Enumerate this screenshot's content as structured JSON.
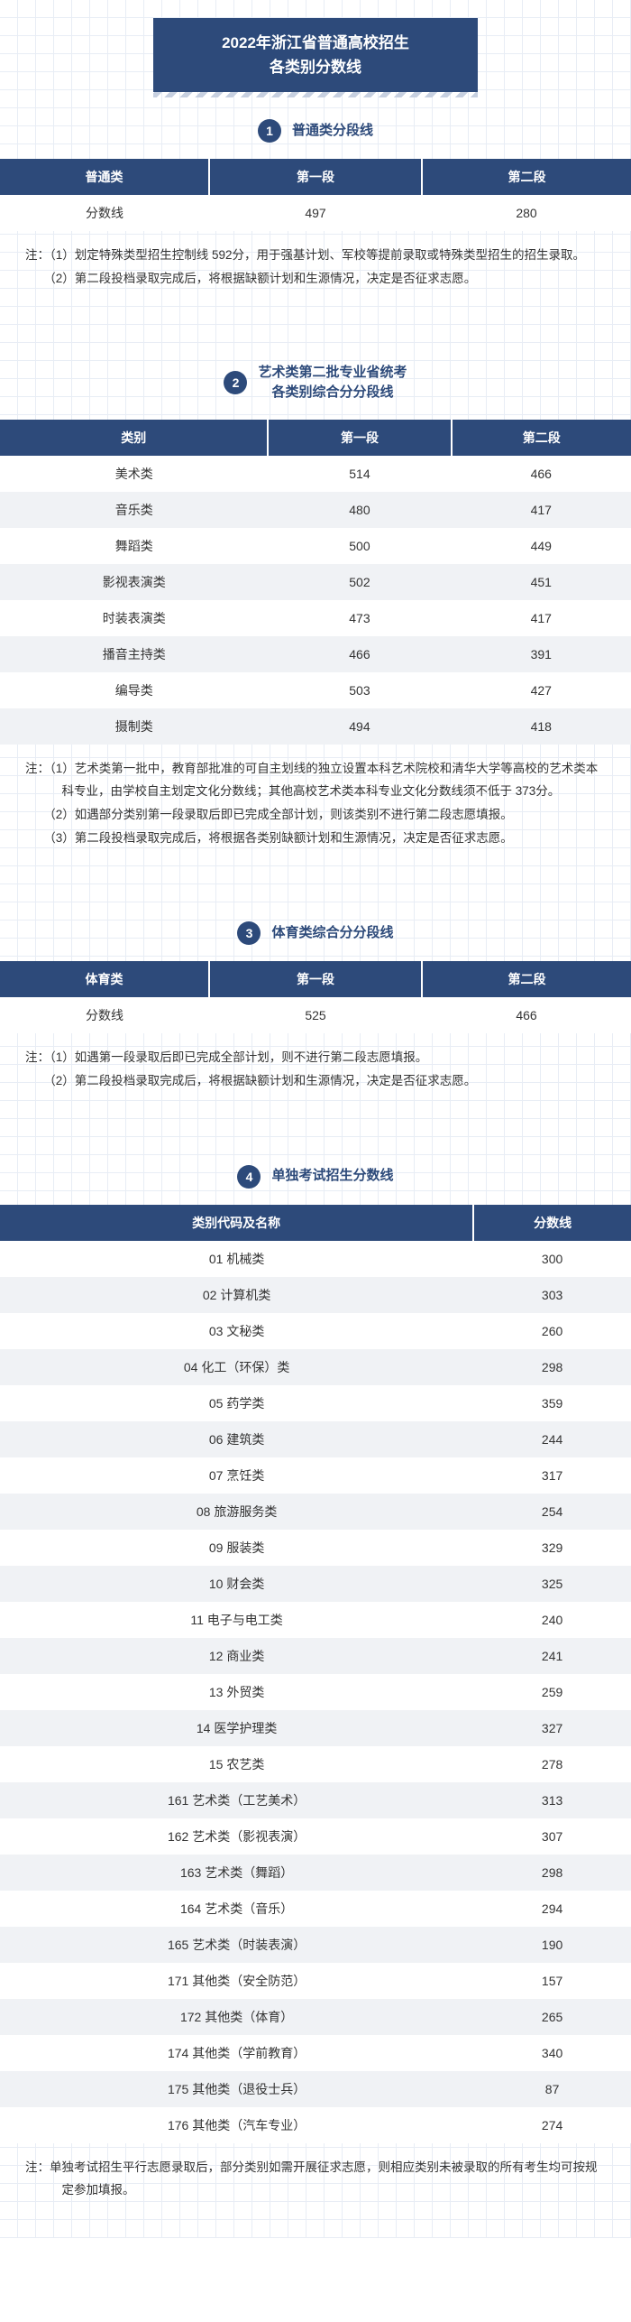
{
  "title_line1": "2022年浙江省普通高校招生",
  "title_line2": "各类别分数线",
  "sections": {
    "s1": {
      "num": "1",
      "title": "普通类分段线",
      "headers": [
        "普通类",
        "第一段",
        "第二段"
      ],
      "rows": [
        [
          "分数线",
          "497",
          "280"
        ]
      ],
      "notes": [
        "注：（1）划定特殊类型招生控制线 592分，用于强基计划、军校等提前录取或特殊类型招生的招生录取。",
        "　　（2）第二段投档录取完成后，将根据缺额计划和生源情况，决定是否征求志愿。"
      ]
    },
    "s2": {
      "num": "2",
      "title_l1": "艺术类第二批专业省统考",
      "title_l2": "各类别综合分分段线",
      "headers": [
        "类别",
        "第一段",
        "第二段"
      ],
      "rows": [
        [
          "美术类",
          "514",
          "466"
        ],
        [
          "音乐类",
          "480",
          "417"
        ],
        [
          "舞蹈类",
          "500",
          "449"
        ],
        [
          "影视表演类",
          "502",
          "451"
        ],
        [
          "时装表演类",
          "473",
          "417"
        ],
        [
          "播音主持类",
          "466",
          "391"
        ],
        [
          "编导类",
          "503",
          "427"
        ],
        [
          "摄制类",
          "494",
          "418"
        ]
      ],
      "notes": [
        "注：（1）艺术类第一批中，教育部批准的可自主划线的独立设置本科艺术院校和清华大学等高校的艺术类本科专业，由学校自主划定文化分数线；其他高校艺术类本科专业文化分数线须不低于 373分。",
        "　　（2）如遇部分类别第一段录取后即已完成全部计划，则该类别不进行第二段志愿填报。",
        "　　（3）第二段投档录取完成后，将根据各类别缺额计划和生源情况，决定是否征求志愿。"
      ]
    },
    "s3": {
      "num": "3",
      "title": "体育类综合分分段线",
      "headers": [
        "体育类",
        "第一段",
        "第二段"
      ],
      "rows": [
        [
          "分数线",
          "525",
          "466"
        ]
      ],
      "notes": [
        "注：（1）如遇第一段录取后即已完成全部计划，则不进行第二段志愿填报。",
        "　　（2）第二段投档录取完成后，将根据缺额计划和生源情况，决定是否征求志愿。"
      ]
    },
    "s4": {
      "num": "4",
      "title": "单独考试招生分数线",
      "headers": [
        "类别代码及名称",
        "分数线"
      ],
      "rows": [
        [
          "01 机械类",
          "300"
        ],
        [
          "02 计算机类",
          "303"
        ],
        [
          "03 文秘类",
          "260"
        ],
        [
          "04 化工（环保）类",
          "298"
        ],
        [
          "05 药学类",
          "359"
        ],
        [
          "06 建筑类",
          "244"
        ],
        [
          "07 烹饪类",
          "317"
        ],
        [
          "08 旅游服务类",
          "254"
        ],
        [
          "09 服装类",
          "329"
        ],
        [
          "10 财会类",
          "325"
        ],
        [
          "11 电子与电工类",
          "240"
        ],
        [
          "12 商业类",
          "241"
        ],
        [
          "13 外贸类",
          "259"
        ],
        [
          "14 医学护理类",
          "327"
        ],
        [
          "15 农艺类",
          "278"
        ],
        [
          "161 艺术类（工艺美术）",
          "313"
        ],
        [
          "162 艺术类（影视表演）",
          "307"
        ],
        [
          "163 艺术类（舞蹈）",
          "298"
        ],
        [
          "164 艺术类（音乐）",
          "294"
        ],
        [
          "165 艺术类（时装表演）",
          "190"
        ],
        [
          "171 其他类（安全防范）",
          "157"
        ],
        [
          "172 其他类（体育）",
          "265"
        ],
        [
          "174 其他类（学前教育）",
          "340"
        ],
        [
          "175 其他类（退役士兵）",
          "87"
        ],
        [
          "176 其他类（汽车专业）",
          "274"
        ]
      ],
      "notes": [
        "注：单独考试招生平行志愿录取后，部分类别如需开展征求志愿，则相应类别未被录取的所有考生均可按规定参加填报。"
      ]
    }
  }
}
